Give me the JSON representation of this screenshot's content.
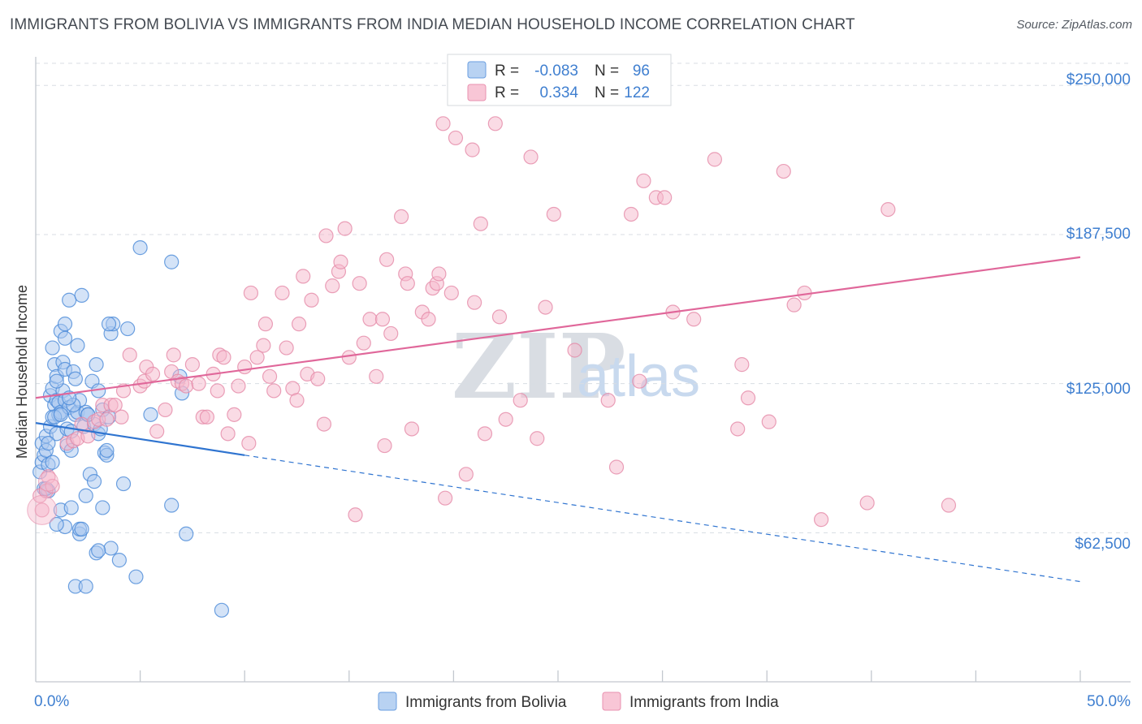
{
  "title": "IMMIGRANTS FROM BOLIVIA VS IMMIGRANTS FROM INDIA MEDIAN HOUSEHOLD INCOME CORRELATION CHART",
  "source": "Source: ZipAtlas.com",
  "watermark": {
    "left": "ZIP",
    "right": "atlas"
  },
  "colors": {
    "bolivia_fill": "#a9c8f0",
    "bolivia_stroke": "#4a8ad8",
    "bolivia_line": "#2f74d0",
    "india_fill": "#f6b8cc",
    "india_stroke": "#e58aa8",
    "india_line": "#e0679a",
    "grid": "#d8dde3",
    "axis": "#c3c8cf"
  },
  "legend": {
    "rows": [
      {
        "r_label": "R =",
        "r_value": "-0.083",
        "n_label": "N =",
        "n_value": "96"
      },
      {
        "r_label": "R =",
        "r_value": "0.334",
        "n_label": "N =",
        "n_value": "122"
      }
    ]
  },
  "bottom_legend": [
    "Immigrants from Bolivia",
    "Immigrants from India"
  ],
  "chart_data": {
    "type": "scatter",
    "title": "IMMIGRANTS FROM BOLIVIA VS IMMIGRANTS FROM INDIA MEDIAN HOUSEHOLD INCOME CORRELATION CHART",
    "xlabel": "",
    "ylabel": "Median Household Income",
    "xlim": [
      0,
      50
    ],
    "ylim": [
      0,
      262000
    ],
    "x_tick_labels": [
      "0.0%",
      "50.0%"
    ],
    "y_ticks": [
      62500,
      125000,
      187500,
      250000
    ],
    "y_tick_labels": [
      "$62,500",
      "$125,000",
      "$187,500",
      "$250,000"
    ],
    "grid": true,
    "series": [
      {
        "name": "Immigrants from Bolivia",
        "R": -0.083,
        "N": 96,
        "trend": {
          "x0": 0,
          "y0": 108500,
          "x_solid_end": 10,
          "y_solid_end": 95000,
          "x1": 50,
          "y1": 42000
        },
        "points": [
          [
            0.2,
            88000
          ],
          [
            0.3,
            92000
          ],
          [
            0.3,
            100000
          ],
          [
            0.4,
            95000
          ],
          [
            0.4,
            81000
          ],
          [
            0.5,
            97000
          ],
          [
            0.5,
            103000
          ],
          [
            0.6,
            91000
          ],
          [
            0.6,
            80000
          ],
          [
            0.7,
            107000
          ],
          [
            0.7,
            120000
          ],
          [
            0.8,
            123000
          ],
          [
            0.8,
            140000
          ],
          [
            0.8,
            111000
          ],
          [
            0.9,
            133000
          ],
          [
            0.9,
            116000
          ],
          [
            1.0,
            118000
          ],
          [
            1.0,
            128000
          ],
          [
            1.0,
            104000
          ],
          [
            1.1,
            117000
          ],
          [
            1.1,
            112000
          ],
          [
            1.2,
            113000
          ],
          [
            1.2,
            147000
          ],
          [
            1.3,
            134000
          ],
          [
            1.3,
            122000
          ],
          [
            1.4,
            131000
          ],
          [
            1.4,
            118000
          ],
          [
            1.4,
            150000
          ],
          [
            1.5,
            99000
          ],
          [
            1.5,
            106000
          ],
          [
            1.6,
            115000
          ],
          [
            1.6,
            160000
          ],
          [
            1.7,
            97000
          ],
          [
            1.7,
            105000
          ],
          [
            1.8,
            130000
          ],
          [
            1.9,
            127000
          ],
          [
            1.9,
            112000
          ],
          [
            2.0,
            141000
          ],
          [
            2.0,
            113000
          ],
          [
            2.1,
            118000
          ],
          [
            2.2,
            162000
          ],
          [
            2.3,
            107000
          ],
          [
            2.4,
            113000
          ],
          [
            2.5,
            112000
          ],
          [
            2.6,
            87000
          ],
          [
            2.7,
            126000
          ],
          [
            2.8,
            108000
          ],
          [
            2.9,
            133000
          ],
          [
            3.0,
            104000
          ],
          [
            3.0,
            122000
          ],
          [
            3.1,
            106000
          ],
          [
            3.2,
            114000
          ],
          [
            3.3,
            96000
          ],
          [
            3.4,
            95000
          ],
          [
            3.4,
            97000
          ],
          [
            3.5,
            111000
          ],
          [
            3.6,
            146000
          ],
          [
            3.7,
            150000
          ],
          [
            1.2,
            72000
          ],
          [
            1.4,
            65000
          ],
          [
            1.7,
            73000
          ],
          [
            1.9,
            40000
          ],
          [
            2.1,
            62000
          ],
          [
            2.1,
            64000
          ],
          [
            2.4,
            40000
          ],
          [
            2.4,
            78000
          ],
          [
            2.9,
            54000
          ],
          [
            3.2,
            73000
          ],
          [
            3.6,
            56000
          ],
          [
            4.0,
            51000
          ],
          [
            4.2,
            83000
          ],
          [
            4.4,
            148000
          ],
          [
            4.8,
            44000
          ],
          [
            5.0,
            182000
          ],
          [
            5.5,
            112000
          ],
          [
            6.5,
            176000
          ],
          [
            6.5,
            74000
          ],
          [
            6.9,
            128000
          ],
          [
            7.0,
            121000
          ],
          [
            7.2,
            62000
          ],
          [
            8.9,
            30000
          ],
          [
            1.0,
            66000
          ],
          [
            2.8,
            84000
          ],
          [
            3.5,
            150000
          ],
          [
            0.5,
            81000
          ],
          [
            0.9,
            111000
          ],
          [
            1.0,
            126000
          ],
          [
            1.2,
            112000
          ],
          [
            1.4,
            144000
          ],
          [
            1.8,
            116000
          ],
          [
            0.6,
            100000
          ],
          [
            0.8,
            92000
          ],
          [
            2.2,
            64000
          ],
          [
            3.0,
            55000
          ],
          [
            1.6,
            119000
          ],
          [
            2.5,
            112000
          ]
        ]
      },
      {
        "name": "Immigrants from India",
        "R": 0.334,
        "N": 122,
        "trend": {
          "x0": 0,
          "y0": 119000,
          "x1": 50,
          "y1": 178000
        },
        "points": [
          [
            0.2,
            78000
          ],
          [
            0.3,
            72000
          ],
          [
            0.5,
            80000
          ],
          [
            0.6,
            86000
          ],
          [
            0.8,
            82000
          ],
          [
            1.5,
            100000
          ],
          [
            1.8,
            101000
          ],
          [
            2.0,
            102000
          ],
          [
            2.2,
            108000
          ],
          [
            2.5,
            103000
          ],
          [
            2.8,
            109000
          ],
          [
            3.0,
            110000
          ],
          [
            3.2,
            116000
          ],
          [
            3.4,
            110000
          ],
          [
            3.6,
            116000
          ],
          [
            3.8,
            116000
          ],
          [
            4.1,
            111000
          ],
          [
            4.2,
            122000
          ],
          [
            4.5,
            137000
          ],
          [
            5.0,
            124000
          ],
          [
            5.2,
            126000
          ],
          [
            5.3,
            132000
          ],
          [
            5.6,
            129000
          ],
          [
            5.8,
            105000
          ],
          [
            6.2,
            114000
          ],
          [
            6.5,
            130000
          ],
          [
            6.6,
            137000
          ],
          [
            6.8,
            126000
          ],
          [
            7.0,
            125000
          ],
          [
            7.2,
            124000
          ],
          [
            7.5,
            133000
          ],
          [
            7.8,
            125000
          ],
          [
            8.0,
            111000
          ],
          [
            8.2,
            111000
          ],
          [
            8.5,
            129000
          ],
          [
            8.7,
            122000
          ],
          [
            8.8,
            137000
          ],
          [
            9.0,
            136000
          ],
          [
            9.2,
            104000
          ],
          [
            9.5,
            112000
          ],
          [
            9.7,
            124000
          ],
          [
            10.0,
            132000
          ],
          [
            10.2,
            100000
          ],
          [
            10.3,
            163000
          ],
          [
            10.6,
            136000
          ],
          [
            10.9,
            141000
          ],
          [
            11.0,
            150000
          ],
          [
            11.2,
            128000
          ],
          [
            11.4,
            122000
          ],
          [
            11.8,
            163000
          ],
          [
            12.0,
            140000
          ],
          [
            12.3,
            123000
          ],
          [
            12.5,
            118000
          ],
          [
            12.6,
            150000
          ],
          [
            12.8,
            170000
          ],
          [
            13.0,
            129000
          ],
          [
            13.2,
            160000
          ],
          [
            13.5,
            127000
          ],
          [
            13.8,
            108000
          ],
          [
            13.9,
            187000
          ],
          [
            14.2,
            166000
          ],
          [
            14.5,
            172000
          ],
          [
            14.6,
            176000
          ],
          [
            14.8,
            190000
          ],
          [
            15.0,
            136000
          ],
          [
            15.3,
            70000
          ],
          [
            15.5,
            167000
          ],
          [
            15.7,
            142000
          ],
          [
            16.0,
            152000
          ],
          [
            16.3,
            128000
          ],
          [
            16.6,
            152000
          ],
          [
            16.7,
            99000
          ],
          [
            16.8,
            177000
          ],
          [
            17.0,
            146000
          ],
          [
            17.5,
            195000
          ],
          [
            17.7,
            171000
          ],
          [
            17.8,
            167000
          ],
          [
            18.0,
            106000
          ],
          [
            18.5,
            155000
          ],
          [
            18.8,
            152000
          ],
          [
            19.0,
            165000
          ],
          [
            19.2,
            167000
          ],
          [
            19.3,
            171000
          ],
          [
            19.6,
            77000
          ],
          [
            19.5,
            234000
          ],
          [
            19.9,
            163000
          ],
          [
            20.1,
            228000
          ],
          [
            20.6,
            87000
          ],
          [
            20.9,
            223000
          ],
          [
            21.0,
            159000
          ],
          [
            21.3,
            192000
          ],
          [
            21.5,
            104000
          ],
          [
            22.0,
            234000
          ],
          [
            22.2,
            153000
          ],
          [
            22.5,
            110000
          ],
          [
            23.2,
            118000
          ],
          [
            23.7,
            220000
          ],
          [
            24.0,
            102000
          ],
          [
            24.4,
            157000
          ],
          [
            24.8,
            196000
          ],
          [
            25.8,
            139000
          ],
          [
            27.4,
            118000
          ],
          [
            27.8,
            90000
          ],
          [
            28.5,
            196000
          ],
          [
            28.9,
            126000
          ],
          [
            29.1,
            210000
          ],
          [
            29.7,
            203000
          ],
          [
            30.1,
            203000
          ],
          [
            30.5,
            155000
          ],
          [
            31.5,
            152000
          ],
          [
            32.5,
            219000
          ],
          [
            33.6,
            106000
          ],
          [
            33.8,
            133000
          ],
          [
            34.1,
            119000
          ],
          [
            35.1,
            109000
          ],
          [
            35.8,
            214000
          ],
          [
            36.3,
            158000
          ],
          [
            36.8,
            163000
          ],
          [
            37.6,
            68000
          ],
          [
            39.8,
            75000
          ],
          [
            40.8,
            198000
          ],
          [
            43.7,
            74000
          ]
        ]
      }
    ]
  }
}
